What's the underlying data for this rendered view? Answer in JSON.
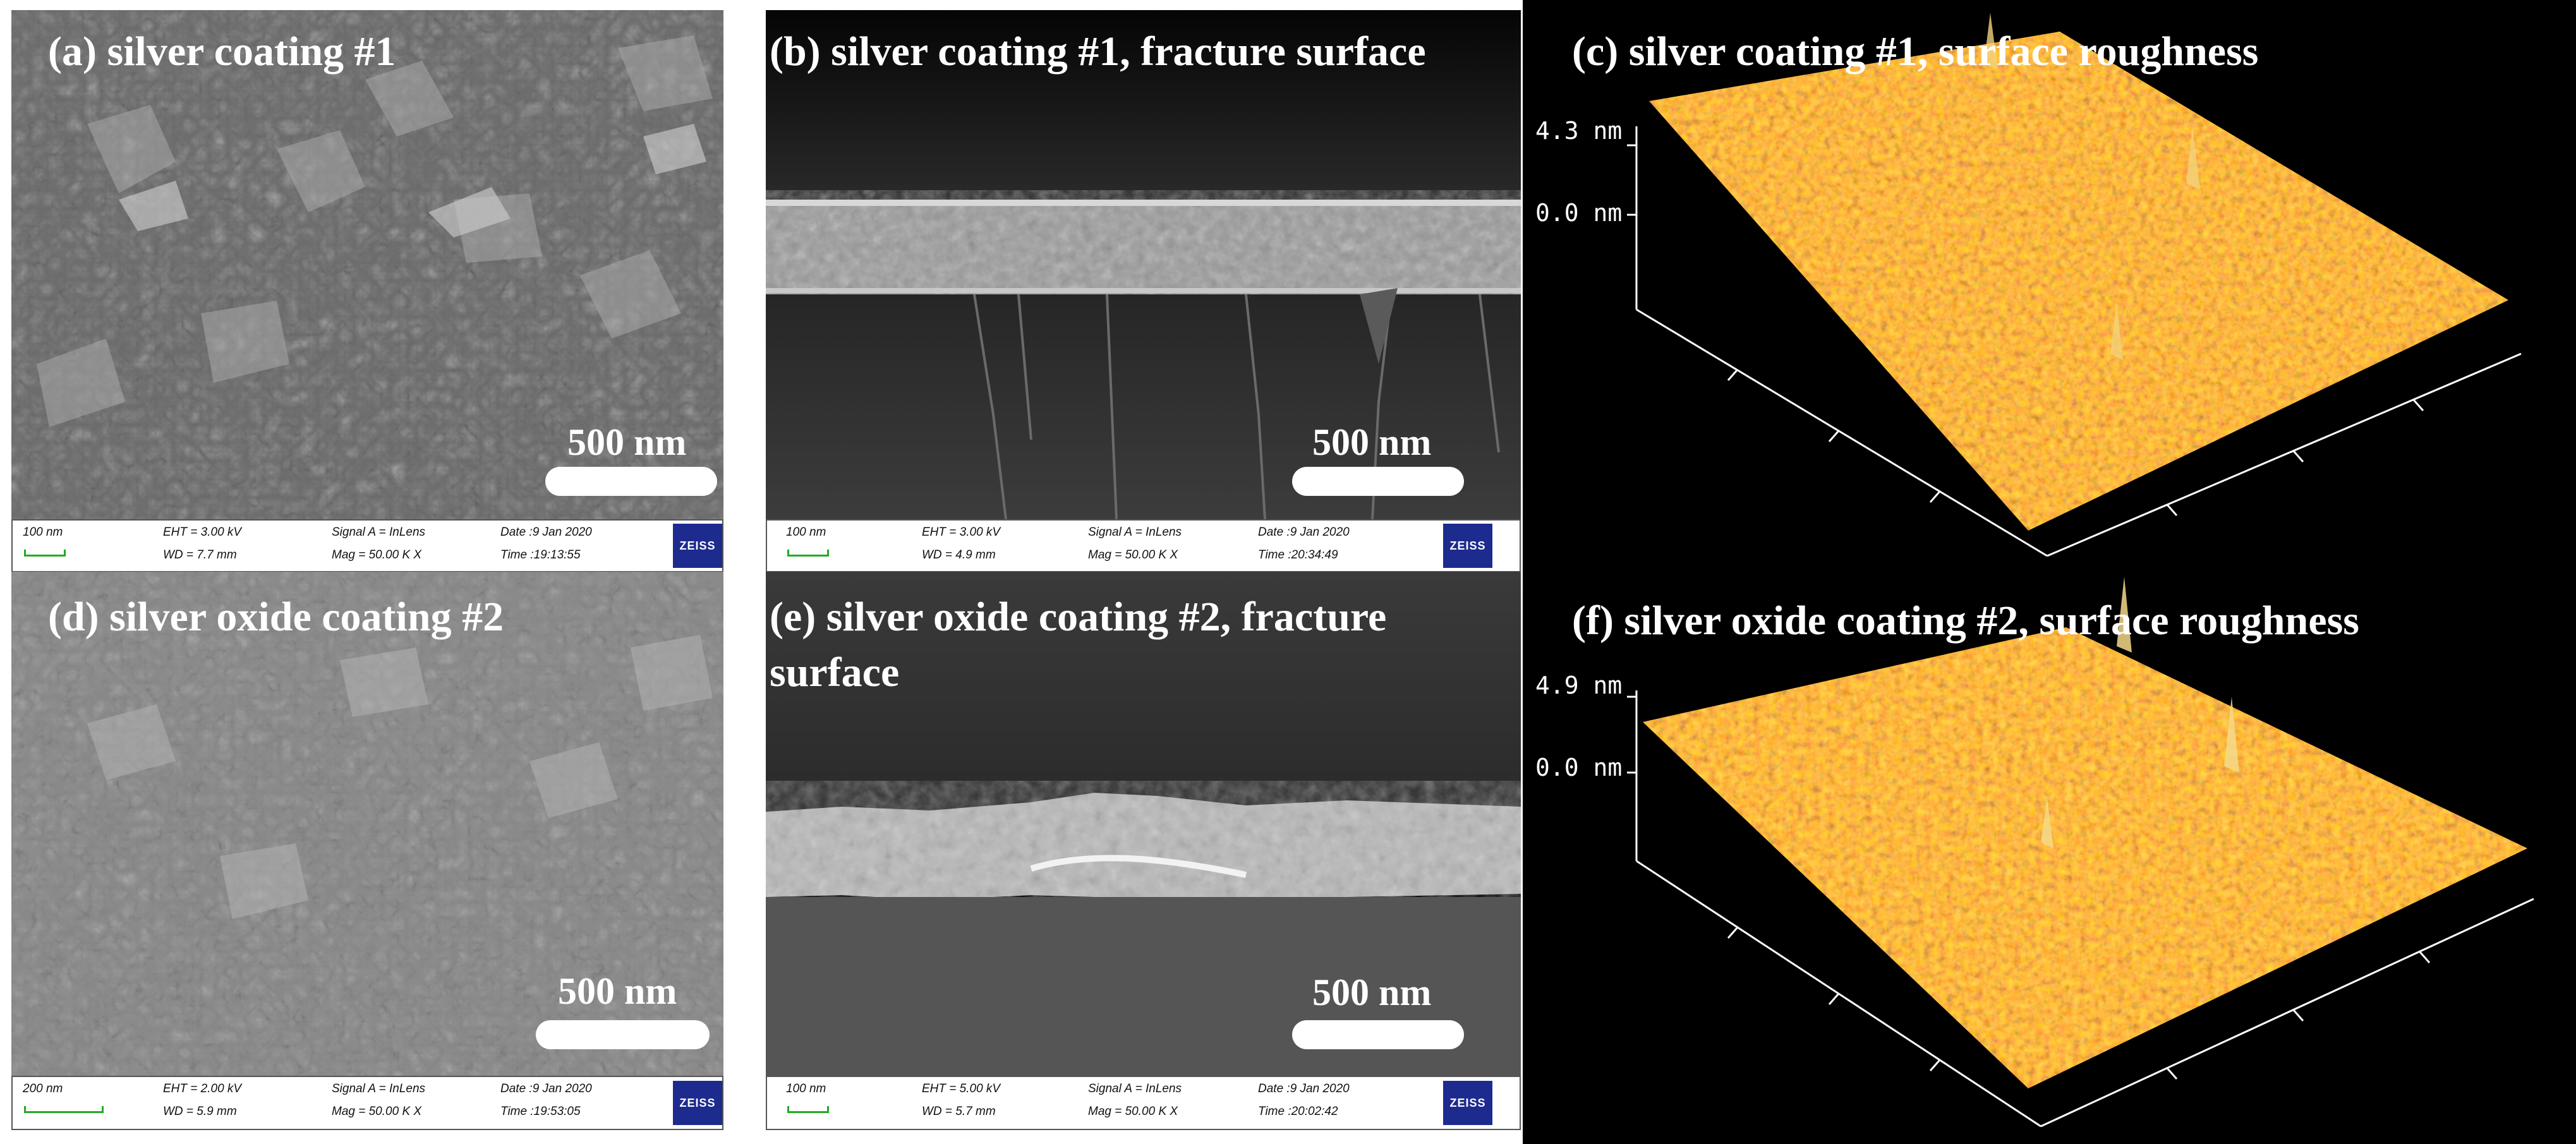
{
  "panels": {
    "a": {
      "title": "(a) silver coating #1",
      "scale": "500 nm",
      "strip": {
        "pixel_size": "100 nm",
        "eht": "EHT =  3.00 kV",
        "wd": "WD =  7.7 mm",
        "signal": "Signal A = InLens",
        "mag": "Mag =   50.00 K X",
        "date": "Date :9 Jan 2020",
        "time": "Time :19:13:55",
        "logo": "ZEISS"
      }
    },
    "b": {
      "title": "(b) silver coating #1, fracture surface",
      "scale": "500 nm",
      "strip": {
        "pixel_size": "100 nm",
        "eht": "EHT =  3.00 kV",
        "wd": "WD =  4.9 mm",
        "signal": "Signal A = InLens",
        "mag": "Mag =   50.00 K X",
        "date": "Date :9 Jan 2020",
        "time": "Time :20:34:49",
        "logo": "ZEISS"
      }
    },
    "c": {
      "title": "(c) silver coating #1, surface roughness",
      "z_max": "4.3 nm",
      "z_zero": "0.0 nm"
    },
    "d": {
      "title": "(d) silver oxide coating #2",
      "scale": "500 nm",
      "strip": {
        "pixel_size": "200 nm",
        "eht": "EHT =  2.00 kV",
        "wd": "WD =  5.9 mm",
        "signal": "Signal A = InLens",
        "mag": "Mag =   50.00 K X",
        "date": "Date :9 Jan 2020",
        "time": "Time :19:53:05",
        "logo": "ZEISS"
      }
    },
    "e": {
      "title": "(e) silver oxide coating #2, fracture surface",
      "scale": "500 nm",
      "strip": {
        "pixel_size": "100 nm",
        "eht": "EHT =  5.00 kV",
        "wd": "WD =  5.7 mm",
        "signal": "Signal A = InLens",
        "mag": "Mag =   50.00 K X",
        "date": "Date :9 Jan 2020",
        "time": "Time :20:02:42",
        "logo": "ZEISS"
      }
    },
    "f": {
      "title": "(f) silver oxide coating #2, surface roughness",
      "z_max": "4.9 nm",
      "z_zero": "0.0 nm"
    }
  }
}
